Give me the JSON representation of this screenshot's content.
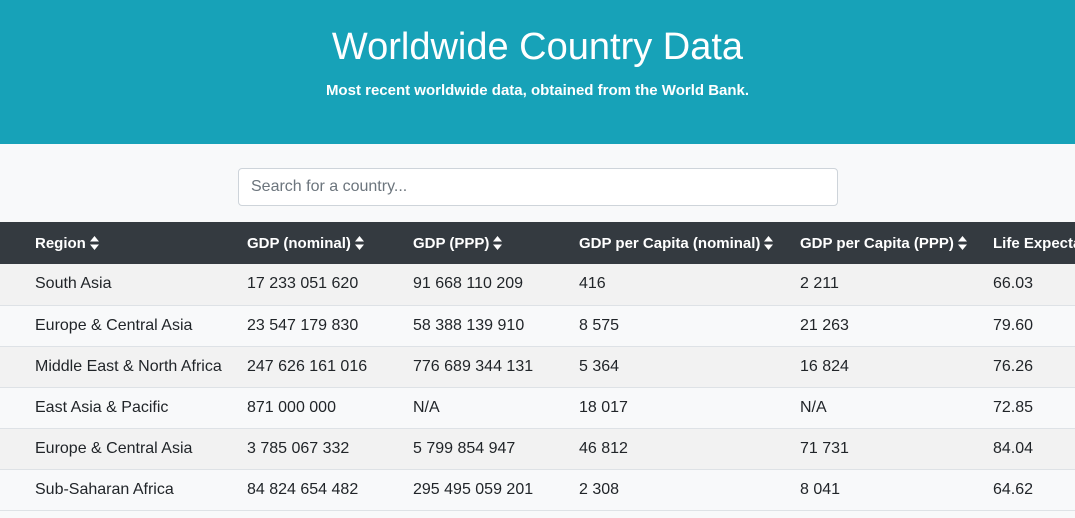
{
  "header": {
    "title": "Worldwide Country Data",
    "subtitle": "Most recent worldwide data, obtained from the World Bank."
  },
  "search": {
    "placeholder": "Search for a country...",
    "value": ""
  },
  "table": {
    "columns": [
      "Region",
      "GDP (nominal)",
      "GDP (PPP)",
      "GDP per Capita (nominal)",
      "GDP per Capita (PPP)",
      "Life Expectancy"
    ],
    "rows": [
      [
        "South Asia",
        "17 233 051 620",
        "91 668 110 209",
        "416",
        "2 211",
        "66.03"
      ],
      [
        "Europe & Central Asia",
        "23 547 179 830",
        "58 388 139 910",
        "8 575",
        "21 263",
        "79.60"
      ],
      [
        "Middle East & North Africa",
        "247 626 161 016",
        "776 689 344 131",
        "5 364",
        "16 824",
        "76.26"
      ],
      [
        "East Asia & Pacific",
        "871 000 000",
        "N/A",
        "18 017",
        "N/A",
        "72.85"
      ],
      [
        "Europe & Central Asia",
        "3 785 067 332",
        "5 799 854 947",
        "46 812",
        "71 731",
        "84.04"
      ],
      [
        "Sub-Saharan Africa",
        "84 824 654 482",
        "295 495 059 201",
        "2 308",
        "8 041",
        "64.62"
      ]
    ]
  },
  "icons": {
    "sort": "sort-icon"
  },
  "colors": {
    "header_bg": "#17a2b8",
    "table_header_bg": "#343a40"
  }
}
